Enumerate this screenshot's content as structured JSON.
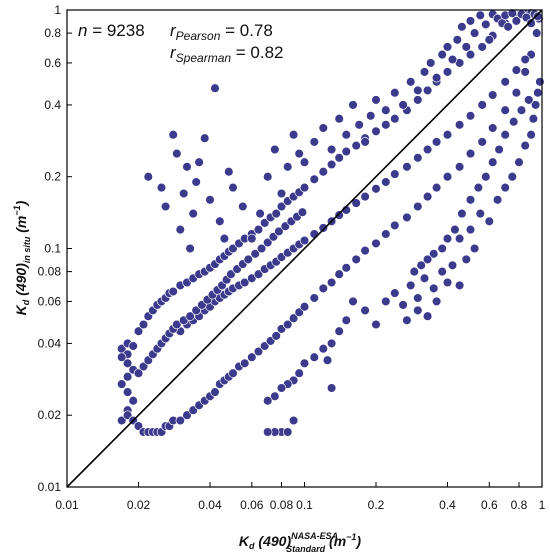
{
  "chart_data": {
    "type": "scatter",
    "title": "",
    "xscale": "log",
    "yscale": "log",
    "xlim": [
      0.01,
      1
    ],
    "ylim": [
      0.01,
      1
    ],
    "grid": false,
    "legend": "none",
    "marker_color": "#3c3a8c",
    "marker_edge": "#ffffff",
    "line_color": "#000000",
    "xticks": [
      {
        "value": 0.01,
        "label": "0.01"
      },
      {
        "value": 0.02,
        "label": "0.02"
      },
      {
        "value": 0.04,
        "label": "0.04"
      },
      {
        "value": 0.06,
        "label": "0.06"
      },
      {
        "value": 0.08,
        "label": "0.08"
      },
      {
        "value": 0.1,
        "label": "0.1"
      },
      {
        "value": 0.2,
        "label": "0.2"
      },
      {
        "value": 0.4,
        "label": "0.4"
      },
      {
        "value": 0.6,
        "label": "0.6"
      },
      {
        "value": 0.8,
        "label": "0.8"
      },
      {
        "value": 1,
        "label": "1"
      }
    ],
    "yticks": [
      {
        "value": 0.01,
        "label": "0.01"
      },
      {
        "value": 0.02,
        "label": "0.02"
      },
      {
        "value": 0.04,
        "label": "0.04"
      },
      {
        "value": 0.06,
        "label": "0.06"
      },
      {
        "value": 0.08,
        "label": "0.08"
      },
      {
        "value": 0.1,
        "label": "0.1"
      },
      {
        "value": 0.2,
        "label": "0.2"
      },
      {
        "value": 0.4,
        "label": "0.4"
      },
      {
        "value": 0.6,
        "label": "0.6"
      },
      {
        "value": 0.8,
        "label": "0.8"
      },
      {
        "value": 1,
        "label": "1"
      }
    ],
    "xlabel": {
      "main": "K",
      "sub": "d",
      "mid": " (490)",
      "sup": "NASA-ESA",
      "sub2": "Standard",
      "unit": " (m",
      "unit_sup": "−1",
      "unit_end": ")"
    },
    "ylabel": {
      "main": "K",
      "sub": "d",
      "mid": " (490)",
      "sub2": "in situ",
      "unit": " (m",
      "unit_sup": "−1",
      "unit_end": ")"
    },
    "annotations": {
      "n_label": "n",
      "n_value": " = 9238",
      "pearson_r": "r",
      "pearson_sub": "Pearson",
      "pearson_value": " = 0.78",
      "spearman_r": "r",
      "spearman_sub": "Spearman",
      "spearman_value": " = 0.82"
    },
    "reference_line": {
      "type": "1:1",
      "from": [
        0.01,
        0.01
      ],
      "to": [
        1,
        1
      ]
    },
    "n": 9238,
    "pearson": 0.78,
    "spearman": 0.82,
    "points_xy": [
      [
        0.017,
        0.038
      ],
      [
        0.018,
        0.036
      ],
      [
        0.017,
        0.035
      ],
      [
        0.018,
        0.04
      ],
      [
        0.019,
        0.039
      ],
      [
        0.018,
        0.033
      ],
      [
        0.019,
        0.031
      ],
      [
        0.018,
        0.029
      ],
      [
        0.017,
        0.027
      ],
      [
        0.018,
        0.025
      ],
      [
        0.019,
        0.023
      ],
      [
        0.018,
        0.021
      ],
      [
        0.017,
        0.019
      ],
      [
        0.018,
        0.02
      ],
      [
        0.019,
        0.019
      ],
      [
        0.02,
        0.018
      ],
      [
        0.021,
        0.017
      ],
      [
        0.022,
        0.017
      ],
      [
        0.023,
        0.017
      ],
      [
        0.024,
        0.017
      ],
      [
        0.025,
        0.017
      ],
      [
        0.026,
        0.018
      ],
      [
        0.027,
        0.018
      ],
      [
        0.028,
        0.019
      ],
      [
        0.03,
        0.019
      ],
      [
        0.032,
        0.02
      ],
      [
        0.034,
        0.021
      ],
      [
        0.036,
        0.022
      ],
      [
        0.038,
        0.023
      ],
      [
        0.04,
        0.024
      ],
      [
        0.042,
        0.025
      ],
      [
        0.044,
        0.027
      ],
      [
        0.046,
        0.028
      ],
      [
        0.048,
        0.029
      ],
      [
        0.05,
        0.03
      ],
      [
        0.053,
        0.032
      ],
      [
        0.056,
        0.033
      ],
      [
        0.06,
        0.035
      ],
      [
        0.064,
        0.037
      ],
      [
        0.068,
        0.039
      ],
      [
        0.072,
        0.041
      ],
      [
        0.076,
        0.043
      ],
      [
        0.08,
        0.046
      ],
      [
        0.085,
        0.048
      ],
      [
        0.09,
        0.051
      ],
      [
        0.095,
        0.054
      ],
      [
        0.1,
        0.057
      ],
      [
        0.11,
        0.062
      ],
      [
        0.12,
        0.068
      ],
      [
        0.13,
        0.072
      ],
      [
        0.14,
        0.078
      ],
      [
        0.15,
        0.083
      ],
      [
        0.165,
        0.09
      ],
      [
        0.18,
        0.098
      ],
      [
        0.2,
        0.105
      ],
      [
        0.22,
        0.115
      ],
      [
        0.24,
        0.125
      ],
      [
        0.27,
        0.135
      ],
      [
        0.3,
        0.15
      ],
      [
        0.33,
        0.165
      ],
      [
        0.36,
        0.18
      ],
      [
        0.4,
        0.2
      ],
      [
        0.45,
        0.22
      ],
      [
        0.5,
        0.25
      ],
      [
        0.56,
        0.28
      ],
      [
        0.62,
        0.32
      ],
      [
        0.7,
        0.38
      ],
      [
        0.78,
        0.45
      ],
      [
        0.85,
        0.55
      ],
      [
        0.9,
        0.65
      ],
      [
        0.95,
        0.8
      ],
      [
        0.97,
        0.92
      ],
      [
        0.02,
        0.045
      ],
      [
        0.021,
        0.048
      ],
      [
        0.022,
        0.052
      ],
      [
        0.023,
        0.055
      ],
      [
        0.024,
        0.058
      ],
      [
        0.025,
        0.06
      ],
      [
        0.026,
        0.062
      ],
      [
        0.027,
        0.065
      ],
      [
        0.028,
        0.066
      ],
      [
        0.03,
        0.07
      ],
      [
        0.032,
        0.072
      ],
      [
        0.034,
        0.075
      ],
      [
        0.036,
        0.078
      ],
      [
        0.038,
        0.08
      ],
      [
        0.04,
        0.083
      ],
      [
        0.042,
        0.086
      ],
      [
        0.044,
        0.09
      ],
      [
        0.046,
        0.093
      ],
      [
        0.048,
        0.097
      ],
      [
        0.05,
        0.1
      ],
      [
        0.053,
        0.105
      ],
      [
        0.056,
        0.11
      ],
      [
        0.06,
        0.115
      ],
      [
        0.064,
        0.12
      ],
      [
        0.068,
        0.128
      ],
      [
        0.072,
        0.135
      ],
      [
        0.076,
        0.14
      ],
      [
        0.08,
        0.15
      ],
      [
        0.085,
        0.158
      ],
      [
        0.09,
        0.165
      ],
      [
        0.095,
        0.172
      ],
      [
        0.1,
        0.18
      ],
      [
        0.11,
        0.195
      ],
      [
        0.12,
        0.21
      ],
      [
        0.13,
        0.225
      ],
      [
        0.14,
        0.24
      ],
      [
        0.15,
        0.255
      ],
      [
        0.165,
        0.27
      ],
      [
        0.18,
        0.29
      ],
      [
        0.2,
        0.31
      ],
      [
        0.22,
        0.33
      ],
      [
        0.24,
        0.35
      ],
      [
        0.27,
        0.38
      ],
      [
        0.3,
        0.42
      ],
      [
        0.33,
        0.46
      ],
      [
        0.36,
        0.5
      ],
      [
        0.4,
        0.55
      ],
      [
        0.45,
        0.6
      ],
      [
        0.5,
        0.65
      ],
      [
        0.56,
        0.7
      ],
      [
        0.62,
        0.78
      ],
      [
        0.7,
        0.88
      ],
      [
        0.78,
        0.95
      ],
      [
        0.85,
        0.96
      ],
      [
        0.9,
        0.97
      ],
      [
        0.03,
        0.045
      ],
      [
        0.032,
        0.048
      ],
      [
        0.034,
        0.05
      ],
      [
        0.036,
        0.052
      ],
      [
        0.038,
        0.055
      ],
      [
        0.04,
        0.057
      ],
      [
        0.042,
        0.06
      ],
      [
        0.044,
        0.062
      ],
      [
        0.046,
        0.064
      ],
      [
        0.048,
        0.066
      ],
      [
        0.05,
        0.068
      ],
      [
        0.053,
        0.07
      ],
      [
        0.056,
        0.072
      ],
      [
        0.06,
        0.075
      ],
      [
        0.064,
        0.078
      ],
      [
        0.068,
        0.082
      ],
      [
        0.072,
        0.085
      ],
      [
        0.076,
        0.088
      ],
      [
        0.08,
        0.092
      ],
      [
        0.085,
        0.096
      ],
      [
        0.09,
        0.1
      ],
      [
        0.095,
        0.104
      ],
      [
        0.1,
        0.108
      ],
      [
        0.11,
        0.115
      ],
      [
        0.12,
        0.122
      ],
      [
        0.13,
        0.13
      ],
      [
        0.14,
        0.138
      ],
      [
        0.15,
        0.145
      ],
      [
        0.165,
        0.155
      ],
      [
        0.18,
        0.165
      ],
      [
        0.2,
        0.178
      ],
      [
        0.22,
        0.19
      ],
      [
        0.24,
        0.205
      ],
      [
        0.27,
        0.22
      ],
      [
        0.3,
        0.24
      ],
      [
        0.33,
        0.26
      ],
      [
        0.36,
        0.28
      ],
      [
        0.4,
        0.3
      ],
      [
        0.45,
        0.33
      ],
      [
        0.5,
        0.36
      ],
      [
        0.56,
        0.4
      ],
      [
        0.62,
        0.44
      ],
      [
        0.7,
        0.5
      ],
      [
        0.78,
        0.56
      ],
      [
        0.85,
        0.62
      ],
      [
        0.022,
        0.2
      ],
      [
        0.025,
        0.18
      ],
      [
        0.026,
        0.15
      ],
      [
        0.028,
        0.3
      ],
      [
        0.029,
        0.25
      ],
      [
        0.03,
        0.12
      ],
      [
        0.031,
        0.17
      ],
      [
        0.032,
        0.22
      ],
      [
        0.033,
        0.1
      ],
      [
        0.034,
        0.14
      ],
      [
        0.035,
        0.19
      ],
      [
        0.036,
        0.23
      ],
      [
        0.038,
        0.29
      ],
      [
        0.04,
        0.16
      ],
      [
        0.042,
        0.47
      ],
      [
        0.044,
        0.13
      ],
      [
        0.046,
        0.11
      ],
      [
        0.048,
        0.21
      ],
      [
        0.05,
        0.18
      ],
      [
        0.055,
        0.15
      ],
      [
        0.06,
        0.11
      ],
      [
        0.065,
        0.14
      ],
      [
        0.07,
        0.2
      ],
      [
        0.075,
        0.26
      ],
      [
        0.08,
        0.17
      ],
      [
        0.085,
        0.22
      ],
      [
        0.09,
        0.3
      ],
      [
        0.095,
        0.25
      ],
      [
        0.1,
        0.23
      ],
      [
        0.11,
        0.28
      ],
      [
        0.12,
        0.32
      ],
      [
        0.13,
        0.26
      ],
      [
        0.14,
        0.35
      ],
      [
        0.15,
        0.3
      ],
      [
        0.16,
        0.4
      ],
      [
        0.17,
        0.33
      ],
      [
        0.18,
        0.28
      ],
      [
        0.19,
        0.36
      ],
      [
        0.2,
        0.42
      ],
      [
        0.22,
        0.38
      ],
      [
        0.24,
        0.45
      ],
      [
        0.26,
        0.4
      ],
      [
        0.28,
        0.5
      ],
      [
        0.3,
        0.46
      ],
      [
        0.32,
        0.55
      ],
      [
        0.34,
        0.6
      ],
      [
        0.36,
        0.52
      ],
      [
        0.38,
        0.65
      ],
      [
        0.4,
        0.7
      ],
      [
        0.42,
        0.62
      ],
      [
        0.44,
        0.75
      ],
      [
        0.46,
        0.85
      ],
      [
        0.48,
        0.7
      ],
      [
        0.5,
        0.9
      ],
      [
        0.52,
        0.8
      ],
      [
        0.55,
        0.95
      ],
      [
        0.58,
        0.87
      ],
      [
        0.6,
        0.75
      ],
      [
        0.62,
        0.96
      ],
      [
        0.65,
        0.92
      ],
      [
        0.68,
        0.88
      ],
      [
        0.7,
        0.95
      ],
      [
        0.72,
        0.85
      ],
      [
        0.75,
        0.97
      ],
      [
        0.78,
        0.9
      ],
      [
        0.82,
        0.96
      ],
      [
        0.86,
        0.93
      ],
      [
        0.9,
        0.88
      ],
      [
        0.93,
        0.96
      ],
      [
        0.96,
        0.94
      ],
      [
        0.22,
        0.06
      ],
      [
        0.24,
        0.065
      ],
      [
        0.26,
        0.058
      ],
      [
        0.28,
        0.07
      ],
      [
        0.3,
        0.062
      ],
      [
        0.32,
        0.075
      ],
      [
        0.35,
        0.068
      ],
      [
        0.38,
        0.08
      ],
      [
        0.4,
        0.072
      ],
      [
        0.42,
        0.085
      ],
      [
        0.45,
        0.07
      ],
      [
        0.48,
        0.09
      ],
      [
        0.3,
        0.055
      ],
      [
        0.33,
        0.052
      ],
      [
        0.36,
        0.06
      ],
      [
        0.27,
        0.05
      ],
      [
        0.2,
        0.048
      ],
      [
        0.18,
        0.055
      ],
      [
        0.16,
        0.06
      ],
      [
        0.15,
        0.05
      ],
      [
        0.14,
        0.045
      ],
      [
        0.13,
        0.04
      ],
      [
        0.125,
        0.034
      ],
      [
        0.12,
        0.038
      ],
      [
        0.11,
        0.035
      ],
      [
        0.1,
        0.033
      ],
      [
        0.095,
        0.03
      ],
      [
        0.09,
        0.028
      ],
      [
        0.085,
        0.027
      ],
      [
        0.08,
        0.026
      ],
      [
        0.075,
        0.024
      ],
      [
        0.07,
        0.023
      ],
      [
        0.13,
        0.026
      ],
      [
        0.09,
        0.019
      ],
      [
        0.08,
        0.017
      ],
      [
        0.075,
        0.017
      ],
      [
        0.07,
        0.017
      ],
      [
        0.085,
        0.017
      ],
      [
        0.45,
        0.11
      ],
      [
        0.5,
        0.12
      ],
      [
        0.52,
        0.1
      ],
      [
        0.55,
        0.14
      ],
      [
        0.6,
        0.13
      ],
      [
        0.65,
        0.16
      ],
      [
        0.7,
        0.18
      ],
      [
        0.75,
        0.2
      ],
      [
        0.8,
        0.23
      ],
      [
        0.85,
        0.27
      ],
      [
        0.9,
        0.3
      ],
      [
        0.92,
        0.35
      ],
      [
        0.94,
        0.4
      ],
      [
        0.96,
        0.45
      ],
      [
        0.98,
        0.5
      ],
      [
        0.88,
        0.42
      ],
      [
        0.82,
        0.38
      ],
      [
        0.76,
        0.34
      ],
      [
        0.7,
        0.3
      ],
      [
        0.66,
        0.26
      ],
      [
        0.62,
        0.23
      ],
      [
        0.58,
        0.2
      ],
      [
        0.54,
        0.18
      ],
      [
        0.5,
        0.16
      ],
      [
        0.46,
        0.14
      ],
      [
        0.43,
        0.12
      ],
      [
        0.4,
        0.11
      ],
      [
        0.38,
        0.1
      ],
      [
        0.35,
        0.095
      ],
      [
        0.33,
        0.09
      ],
      [
        0.31,
        0.085
      ],
      [
        0.29,
        0.08
      ],
      [
        0.02,
        0.03
      ],
      [
        0.021,
        0.032
      ],
      [
        0.022,
        0.034
      ],
      [
        0.023,
        0.036
      ],
      [
        0.024,
        0.038
      ],
      [
        0.025,
        0.04
      ],
      [
        0.026,
        0.042
      ],
      [
        0.027,
        0.044
      ],
      [
        0.028,
        0.046
      ],
      [
        0.029,
        0.048
      ],
      [
        0.031,
        0.05
      ],
      [
        0.033,
        0.052
      ],
      [
        0.035,
        0.055
      ],
      [
        0.037,
        0.058
      ],
      [
        0.039,
        0.061
      ],
      [
        0.041,
        0.064
      ],
      [
        0.043,
        0.067
      ],
      [
        0.045,
        0.07
      ],
      [
        0.047,
        0.074
      ],
      [
        0.049,
        0.078
      ],
      [
        0.052,
        0.082
      ],
      [
        0.055,
        0.086
      ],
      [
        0.058,
        0.09
      ],
      [
        0.062,
        0.095
      ],
      [
        0.066,
        0.1
      ],
      [
        0.07,
        0.106
      ],
      [
        0.074,
        0.112
      ],
      [
        0.078,
        0.118
      ],
      [
        0.083,
        0.124
      ],
      [
        0.088,
        0.13
      ],
      [
        0.093,
        0.136
      ],
      [
        0.098,
        0.142
      ]
    ]
  }
}
